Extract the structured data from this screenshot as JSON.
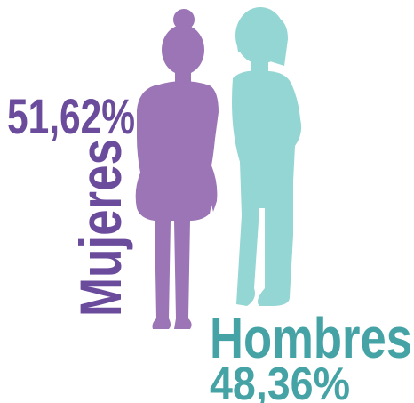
{
  "women": {
    "label": "Mujeres",
    "value": "51,62%"
  },
  "men": {
    "label": "Hombres",
    "value": "48,36%"
  }
}
